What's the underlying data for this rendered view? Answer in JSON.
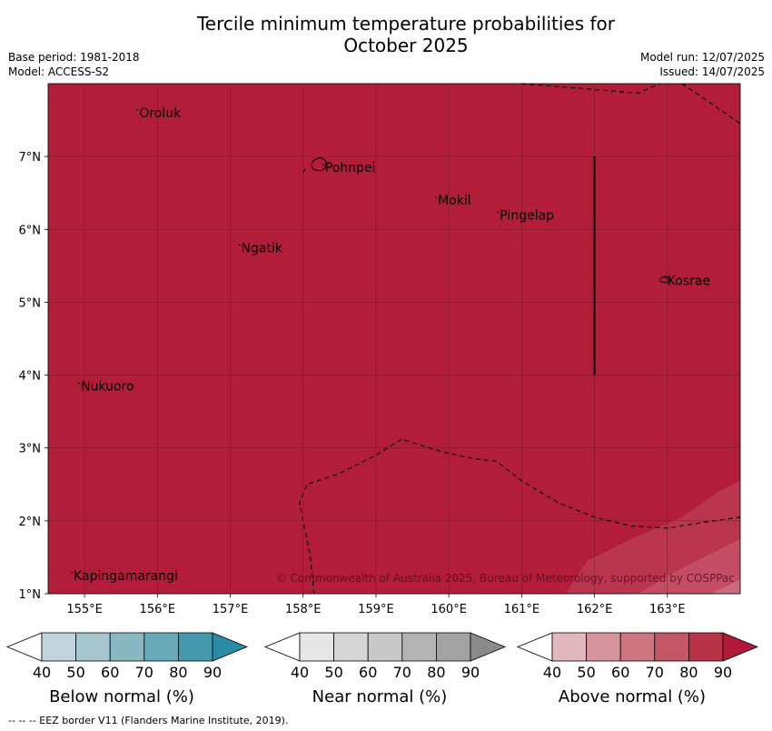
{
  "title_line1": "Tercile minimum temperature probabilities for",
  "title_line2": "October 2025",
  "base_period": "Base period: 1981-2018",
  "model": "Model: ACCESS-S2",
  "model_run": "Model run: 12/07/2025",
  "issued": "Issued: 14/07/2025",
  "copyright": "© Commonwealth of Australia 2025, Bureau of Meteorology, supported by COSPPac",
  "map": {
    "lon_range": [
      154.5,
      164.0
    ],
    "lat_range": [
      1.0,
      8.0
    ],
    "fill_color": "#b21e3a",
    "lon_ticks": [
      {
        "v": 155,
        "label": "155°E"
      },
      {
        "v": 156,
        "label": "156°E"
      },
      {
        "v": 157,
        "label": "157°E"
      },
      {
        "v": 158,
        "label": "158°E"
      },
      {
        "v": 159,
        "label": "159°E"
      },
      {
        "v": 160,
        "label": "160°E"
      },
      {
        "v": 161,
        "label": "161°E"
      },
      {
        "v": 162,
        "label": "162°E"
      },
      {
        "v": 163,
        "label": "163°E"
      }
    ],
    "lat_ticks": [
      {
        "v": 1,
        "label": "1°N"
      },
      {
        "v": 2,
        "label": "2°N"
      },
      {
        "v": 3,
        "label": "3°N"
      },
      {
        "v": 4,
        "label": "4°N"
      },
      {
        "v": 5,
        "label": "5°N"
      },
      {
        "v": 6,
        "label": "6°N"
      },
      {
        "v": 7,
        "label": "7°N"
      }
    ],
    "places": [
      {
        "name": "Oroluk",
        "lon": 155.75,
        "lat": 7.6
      },
      {
        "name": "Pohnpei",
        "lon": 158.3,
        "lat": 6.85
      },
      {
        "name": "Mokil",
        "lon": 159.85,
        "lat": 6.4
      },
      {
        "name": "Pingelap",
        "lon": 160.7,
        "lat": 6.2
      },
      {
        "name": "Ngatik",
        "lon": 157.15,
        "lat": 5.75
      },
      {
        "name": "Kosrae",
        "lon": 163.0,
        "lat": 5.3
      },
      {
        "name": "Nukuoro",
        "lon": 154.95,
        "lat": 3.85
      },
      {
        "name": "Kapingamarangi",
        "lon": 154.85,
        "lat": 1.25
      }
    ],
    "eez_lines": [
      [
        [
          161.0,
          8.0
        ],
        [
          162.6,
          7.87
        ],
        [
          162.9,
          8.0
        ]
      ],
      [
        [
          163.2,
          8.0
        ],
        [
          163.5,
          7.8
        ],
        [
          164.0,
          7.45
        ]
      ],
      [
        [
          158.15,
          1.0
        ],
        [
          158.1,
          1.5
        ],
        [
          157.95,
          2.25
        ],
        [
          158.05,
          2.5
        ],
        [
          158.5,
          2.65
        ],
        [
          159.0,
          2.9
        ],
        [
          159.35,
          3.12
        ],
        [
          159.9,
          2.95
        ],
        [
          160.35,
          2.85
        ],
        [
          160.65,
          2.82
        ],
        [
          161.0,
          2.55
        ],
        [
          161.5,
          2.25
        ],
        [
          162.0,
          2.05
        ],
        [
          162.5,
          1.93
        ],
        [
          163.0,
          1.9
        ],
        [
          163.5,
          1.98
        ],
        [
          164.0,
          2.05
        ]
      ]
    ],
    "boundary_line": [
      [
        162.0,
        7.0
      ],
      [
        162.0,
        4.0
      ]
    ],
    "lighter_zones": [
      {
        "color": "#ba3550",
        "points": [
          [
            161.6,
            1.0
          ],
          [
            161.9,
            1.45
          ],
          [
            162.5,
            1.75
          ],
          [
            163.2,
            2.05
          ],
          [
            163.7,
            2.4
          ],
          [
            164.0,
            2.55
          ],
          [
            164.0,
            1.0
          ]
        ]
      },
      {
        "color": "#c24d64",
        "points": [
          [
            162.6,
            1.0
          ],
          [
            163.1,
            1.3
          ],
          [
            163.6,
            1.55
          ],
          [
            164.0,
            1.75
          ],
          [
            164.0,
            1.0
          ]
        ]
      },
      {
        "color": "#cb6a7c",
        "points": [
          [
            163.6,
            1.0
          ],
          [
            163.85,
            1.12
          ],
          [
            164.0,
            1.2
          ],
          [
            164.0,
            1.0
          ]
        ]
      }
    ]
  },
  "legends": [
    {
      "label": "Below normal (%)",
      "ticks": [
        "40",
        "50",
        "60",
        "70",
        "80",
        "90"
      ],
      "colors": [
        "#ffffff",
        "#c0d5db",
        "#a5c7cd",
        "#89b8c2",
        "#6aabb9",
        "#4499ac",
        "#2a8ca4"
      ]
    },
    {
      "label": "Near normal (%)",
      "ticks": [
        "40",
        "50",
        "60",
        "70",
        "80",
        "90"
      ],
      "colors": [
        "#ffffff",
        "#e6e6e6",
        "#d6d6d6",
        "#c8c8c8",
        "#b4b4b4",
        "#a3a3a3",
        "#8a8a8a"
      ]
    },
    {
      "label": "Above normal (%)",
      "ticks": [
        "40",
        "50",
        "60",
        "70",
        "80",
        "90"
      ],
      "colors": [
        "#ffffff",
        "#e2b8c0",
        "#d6949e",
        "#cd7680",
        "#c45766",
        "#b83346",
        "#b2183a"
      ]
    }
  ],
  "footnote": "--  --  -- EEZ border V11 (Flanders Marine Institute, 2019)."
}
